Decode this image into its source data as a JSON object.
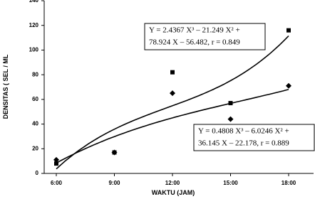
{
  "chart_data": {
    "type": "scatter",
    "x_label": "WAKTU (JAM)",
    "y_label": "DENSITAS ( SEL / ML",
    "categories": [
      "6:00",
      "9:00",
      "12:00",
      "15:00",
      "18:00"
    ],
    "series": [
      {
        "marker": "square",
        "color": "#000000",
        "values": [
          8,
          17,
          82,
          57,
          116
        ],
        "trendline": {
          "coefficients": [
            2.4367,
            -21.249,
            78.924,
            -56.482
          ],
          "equation": [
            "Y = 2.4367 X³ – 21.249 X² +",
            "78.924 X – 56.482, r = 0.849"
          ]
        }
      },
      {
        "marker": "diamond",
        "color": "#000000",
        "values": [
          11,
          17,
          65,
          44,
          71
        ],
        "trendline": {
          "coefficients": [
            0.4808,
            -6.0246,
            36.145,
            -22.178
          ],
          "equation": [
            "Y = 0.4808 X³ – 6.0246 X² +",
            "36.145 X – 22.178, r = 0.889"
          ]
        }
      }
    ],
    "ylim": [
      0,
      140
    ],
    "yticks": [
      0,
      20,
      40,
      60,
      80,
      100,
      120,
      140
    ],
    "grid": false
  }
}
